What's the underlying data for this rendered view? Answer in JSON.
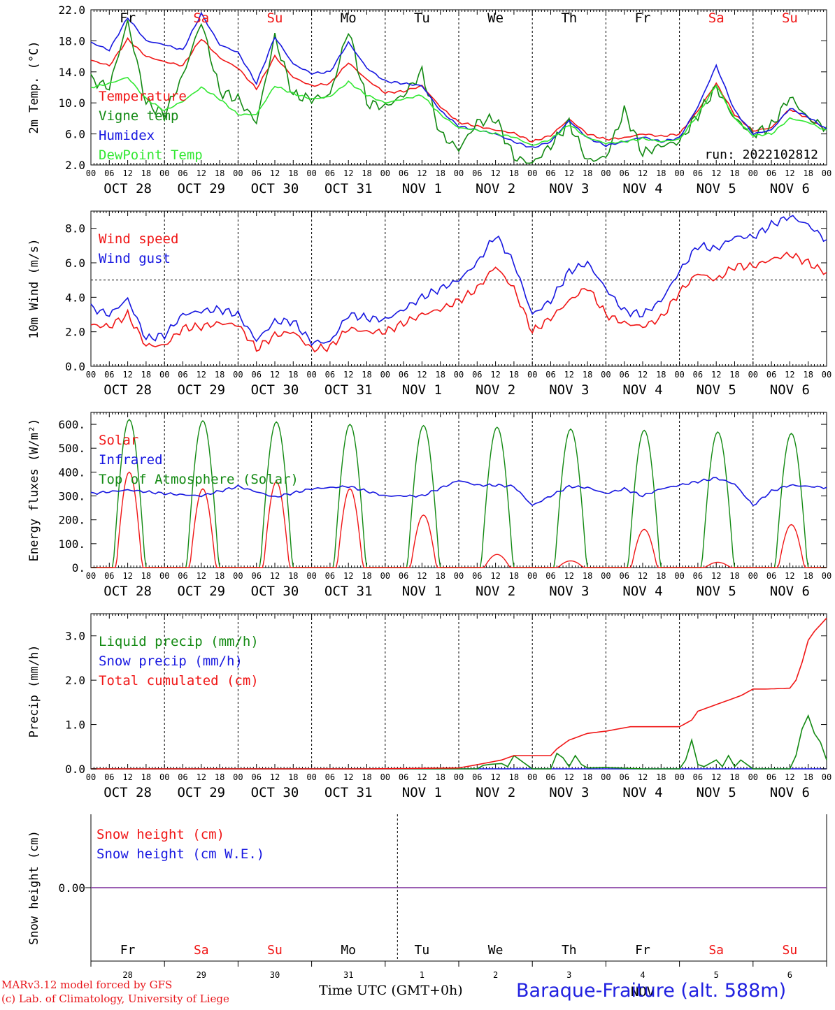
{
  "station": "Baraque-Fraiture (alt. 588m)",
  "credit_line1": "MARv3.12 model forced by GFS",
  "credit_line2": "(c) Lab. of Climatology, University of Liege",
  "xaxis_title": "Time UTC (GMT+0h)",
  "day_names": [
    "Fr",
    "Sa",
    "Su",
    "Mo",
    "Tu",
    "We",
    "Th",
    "Fr",
    "Sa",
    "Su"
  ],
  "weekend_flags": [
    false,
    true,
    true,
    false,
    false,
    false,
    false,
    false,
    true,
    true
  ],
  "date_labels": [
    "OCT 28",
    "OCT 29",
    "OCT 30",
    "OCT 31",
    "NOV  1",
    "NOV  2",
    "NOV  3",
    "NOV  4",
    "NOV  5",
    "NOV  6"
  ],
  "bottom_day_numbers": [
    "28",
    "29",
    "30",
    "31",
    "1",
    "2",
    "3",
    "4",
    "5",
    "6"
  ],
  "bottom_month_label": "NOV",
  "hour_ticks": [
    "00",
    "06",
    "12",
    "18"
  ],
  "final_hour_label": "00",
  "colors": {
    "red": "#f01616",
    "dark_green": "#138a13",
    "blue": "#1717e0",
    "light_green": "#33e833",
    "purple": "#7a2a9a",
    "axis": "#000000",
    "weekend": "#f01616"
  },
  "chart_data": [
    {
      "id": "temperature",
      "type": "line",
      "ylabel": "2m Temp. (°C)",
      "ylim": [
        2.0,
        22.0
      ],
      "yticks": [
        2.0,
        6.0,
        10.0,
        14.0,
        18.0,
        22.0
      ],
      "ytick_labels": [
        "2.0",
        "6.0",
        "10.0",
        "14.0",
        "18.0",
        "22.0"
      ],
      "annotation": "run: 2022102812",
      "legend_placement": "left",
      "x_unit": "hours since Oct 28 00 UTC",
      "series": [
        {
          "name": "Temperature",
          "color": "#f01616",
          "x": [
            0,
            6,
            12,
            18,
            24,
            30,
            36,
            42,
            48,
            54,
            60,
            66,
            72,
            78,
            84,
            90,
            96,
            102,
            108,
            114,
            120,
            126,
            132,
            138,
            144,
            150,
            156,
            162,
            168,
            174,
            180,
            186,
            192,
            198,
            204,
            210,
            216,
            222,
            228,
            234,
            240
          ],
          "y": [
            15.5,
            14.8,
            18.2,
            16.0,
            15.3,
            14.8,
            18.3,
            15.8,
            14.5,
            11.8,
            16.0,
            13.3,
            12.2,
            12.5,
            15.2,
            13.0,
            11.3,
            11.5,
            12.2,
            9.5,
            7.5,
            7.0,
            6.5,
            6.1,
            5.0,
            5.8,
            7.9,
            6.0,
            5.3,
            5.5,
            6.0,
            5.7,
            6.0,
            9.0,
            12.5,
            8.5,
            6.4,
            6.8,
            9.2,
            8.0,
            6.5
          ]
        },
        {
          "name": "Vigne temp",
          "color": "#138a13",
          "x": [
            0,
            6,
            12,
            18,
            24,
            30,
            36,
            42,
            48,
            54,
            60,
            66,
            72,
            78,
            84,
            90,
            96,
            102,
            108,
            114,
            120,
            126,
            132,
            138,
            144,
            150,
            156,
            162,
            168,
            174,
            180,
            186,
            192,
            198,
            204,
            210,
            216,
            222,
            228,
            234,
            240
          ],
          "y": [
            13.0,
            12.0,
            20.5,
            10.0,
            8.5,
            13.5,
            20.5,
            11.5,
            10.5,
            7.5,
            18.5,
            11.0,
            10.5,
            11.0,
            19.5,
            10.0,
            9.5,
            11.0,
            14.0,
            6.0,
            4.0,
            7.5,
            8.0,
            3.0,
            2.2,
            4.5,
            7.5,
            2.5,
            3.0,
            9.0,
            3.5,
            4.5,
            5.0,
            8.5,
            12.0,
            8.0,
            6.0,
            7.0,
            10.8,
            8.0,
            6.8
          ]
        },
        {
          "name": "Humidex",
          "color": "#1717e0",
          "x": [
            0,
            6,
            12,
            18,
            24,
            30,
            36,
            42,
            48,
            54,
            60,
            66,
            72,
            78,
            84,
            90,
            96,
            102,
            108,
            114,
            120,
            126,
            132,
            138,
            144,
            150,
            156,
            162,
            168,
            174,
            180,
            186,
            192,
            198,
            204,
            210,
            216,
            222,
            228,
            234,
            240
          ],
          "y": [
            17.8,
            16.8,
            21.0,
            18.0,
            17.5,
            16.8,
            21.5,
            17.5,
            16.5,
            12.5,
            18.5,
            15.0,
            13.8,
            14.0,
            17.8,
            14.5,
            12.8,
            12.5,
            12.2,
            9.0,
            7.0,
            6.5,
            6.0,
            5.0,
            4.2,
            5.0,
            7.7,
            5.5,
            4.5,
            5.0,
            5.6,
            5.0,
            5.5,
            9.5,
            14.8,
            9.0,
            6.0,
            6.5,
            9.3,
            8.2,
            6.6
          ]
        },
        {
          "name": "DewPoint Temp",
          "color": "#33e833",
          "x": [
            0,
            6,
            12,
            18,
            24,
            30,
            36,
            42,
            48,
            54,
            60,
            66,
            72,
            78,
            84,
            90,
            96,
            102,
            108,
            114,
            120,
            126,
            132,
            138,
            144,
            150,
            156,
            162,
            168,
            174,
            180,
            186,
            192,
            198,
            204,
            210,
            216,
            222,
            228,
            234,
            240
          ],
          "y": [
            12.0,
            12.5,
            13.3,
            10.5,
            9.0,
            10.2,
            12.0,
            10.5,
            8.5,
            8.5,
            12.2,
            11.2,
            10.5,
            10.8,
            12.7,
            11.0,
            10.0,
            10.5,
            11.0,
            8.5,
            6.8,
            6.5,
            6.0,
            5.6,
            4.5,
            5.3,
            7.2,
            5.5,
            4.8,
            5.0,
            5.4,
            5.0,
            5.3,
            8.5,
            12.3,
            8.0,
            5.8,
            6.0,
            8.0,
            7.5,
            6.4
          ]
        }
      ]
    },
    {
      "id": "wind",
      "type": "line",
      "ylabel": "10m Wind (m/s)",
      "ylim": [
        0.0,
        9.0
      ],
      "yticks": [
        0.0,
        2.0,
        4.0,
        6.0,
        8.0
      ],
      "ytick_labels": [
        "0.0",
        "2.0",
        "4.0",
        "6.0",
        "8.0"
      ],
      "reference_line": 5.0,
      "legend_placement": "top-left",
      "x_unit": "hours since Oct 28 00 UTC",
      "series": [
        {
          "name": "Wind speed",
          "color": "#f01616",
          "x": [
            0,
            6,
            12,
            18,
            24,
            30,
            36,
            42,
            48,
            54,
            60,
            66,
            72,
            78,
            84,
            90,
            96,
            102,
            108,
            114,
            120,
            126,
            132,
            138,
            144,
            150,
            156,
            162,
            168,
            174,
            180,
            186,
            192,
            198,
            204,
            210,
            216,
            222,
            228,
            234,
            240
          ],
          "y": [
            2.4,
            2.3,
            3.0,
            1.2,
            1.2,
            2.2,
            2.3,
            2.5,
            2.4,
            1.0,
            1.8,
            2.0,
            1.0,
            1.1,
            2.2,
            2.0,
            2.0,
            2.5,
            3.0,
            3.3,
            3.8,
            4.5,
            5.8,
            4.5,
            2.0,
            2.8,
            3.8,
            4.6,
            3.0,
            2.5,
            2.3,
            2.8,
            4.3,
            5.4,
            5.0,
            5.8,
            5.8,
            6.2,
            6.5,
            6.0,
            5.4
          ]
        },
        {
          "name": "Wind gust",
          "color": "#1717e0",
          "x": [
            0,
            6,
            12,
            18,
            24,
            30,
            36,
            42,
            48,
            54,
            60,
            66,
            72,
            78,
            84,
            90,
            96,
            102,
            108,
            114,
            120,
            126,
            132,
            138,
            144,
            150,
            156,
            162,
            168,
            174,
            180,
            186,
            192,
            198,
            204,
            210,
            216,
            222,
            228,
            234,
            240
          ],
          "y": [
            3.4,
            3.0,
            3.9,
            1.6,
            1.8,
            3.0,
            3.2,
            3.3,
            3.0,
            1.5,
            2.6,
            2.6,
            1.4,
            1.4,
            3.0,
            2.8,
            2.7,
            3.3,
            4.0,
            4.5,
            5.0,
            6.0,
            7.6,
            6.0,
            3.0,
            3.8,
            5.5,
            6.0,
            4.5,
            3.2,
            3.0,
            3.8,
            5.5,
            7.0,
            6.8,
            7.5,
            7.5,
            8.2,
            8.7,
            8.2,
            7.3
          ]
        }
      ]
    },
    {
      "id": "energy",
      "type": "line",
      "ylabel": "Energy fluxes (W/m²)",
      "ylim": [
        0,
        650
      ],
      "yticks": [
        0,
        100,
        200,
        300,
        400,
        500,
        600
      ],
      "ytick_labels": [
        "0.",
        "100.",
        "200.",
        "300.",
        "400.",
        "500.",
        "600."
      ],
      "legend_placement": "top-left",
      "x_unit": "hours since Oct 28 00 UTC",
      "daily_toa_peak": [
        620,
        615,
        610,
        600,
        595,
        588,
        580,
        575,
        568,
        562
      ],
      "daily_solar_peak": [
        400,
        330,
        360,
        330,
        220,
        55,
        28,
        160,
        22,
        180
      ],
      "series": [
        {
          "name": "Solar",
          "color": "#f01616"
        },
        {
          "name": "Infrared",
          "color": "#1717e0",
          "x": [
            0,
            12,
            24,
            36,
            48,
            60,
            72,
            84,
            96,
            108,
            120,
            126,
            132,
            138,
            144,
            150,
            156,
            162,
            168,
            174,
            180,
            186,
            192,
            198,
            204,
            210,
            216,
            222,
            228,
            234,
            240
          ],
          "y": [
            310,
            325,
            310,
            300,
            340,
            295,
            330,
            340,
            300,
            300,
            365,
            345,
            345,
            340,
            260,
            300,
            340,
            335,
            310,
            330,
            300,
            330,
            345,
            360,
            375,
            350,
            260,
            320,
            345,
            340,
            335
          ]
        },
        {
          "name": "Top of Atmosphere (Solar)",
          "color": "#138a13"
        }
      ]
    },
    {
      "id": "precip",
      "type": "line",
      "ylabel": "Precip (mm/h)",
      "ylim": [
        0.0,
        3.5
      ],
      "yticks": [
        0.0,
        1.0,
        2.0,
        3.0
      ],
      "ytick_labels": [
        "0.0",
        "1.0",
        "2.0",
        "3.0"
      ],
      "legend_placement": "top-left",
      "x_unit": "hours since Oct 28 00 UTC",
      "series": [
        {
          "name": "Liquid precip (mm/h)",
          "color": "#138a13",
          "x": [
            0,
            108,
            120,
            126,
            128,
            130,
            134,
            136,
            138,
            144,
            150,
            152,
            154,
            156,
            158,
            160,
            162,
            168,
            180,
            192,
            194,
            196,
            198,
            200,
            204,
            206,
            208,
            210,
            212,
            216,
            228,
            230,
            232,
            234,
            236,
            238,
            240
          ],
          "y": [
            0,
            0,
            0,
            0,
            0.08,
            0.1,
            0.12,
            0.05,
            0.3,
            0,
            0,
            0.35,
            0.25,
            0.05,
            0.3,
            0.1,
            0.02,
            0.03,
            0,
            0,
            0.2,
            0.65,
            0.1,
            0.05,
            0.2,
            0.05,
            0.3,
            0.05,
            0.2,
            0,
            0,
            0.3,
            0.9,
            1.2,
            0.8,
            0.6,
            0.2
          ]
        },
        {
          "name": "Snow precip (mm/h)",
          "color": "#1717e0",
          "x": [
            0,
            240
          ],
          "y": [
            0,
            0
          ]
        },
        {
          "name": "Total cumulated (cm)",
          "color": "#f01616",
          "x": [
            0,
            90,
            120,
            128,
            134,
            138,
            144,
            150,
            152,
            156,
            162,
            168,
            176,
            192,
            196,
            198,
            204,
            212,
            216,
            220,
            228,
            230,
            232,
            234,
            236,
            240
          ],
          "y": [
            0,
            0,
            0.02,
            0.12,
            0.2,
            0.3,
            0.3,
            0.3,
            0.45,
            0.65,
            0.8,
            0.85,
            0.95,
            0.95,
            1.1,
            1.3,
            1.45,
            1.65,
            1.8,
            1.8,
            1.82,
            2.0,
            2.4,
            2.9,
            3.1,
            3.4
          ]
        }
      ]
    },
    {
      "id": "snow",
      "type": "line",
      "ylabel": "Snow height (cm)",
      "ytick_labels": [
        "0.00"
      ],
      "legend_placement": "top-left",
      "series": [
        {
          "name": "Snow height (cm)",
          "color": "#f01616",
          "x": [
            0,
            240
          ],
          "y": [
            0,
            0
          ]
        },
        {
          "name": "Snow height (cm W.E.)",
          "color": "#1717e0",
          "x": [
            0,
            240
          ],
          "y": [
            0,
            0
          ]
        }
      ]
    }
  ]
}
